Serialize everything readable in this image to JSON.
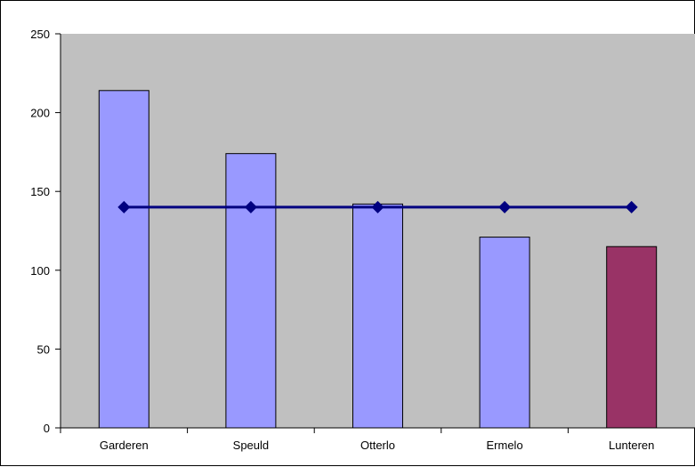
{
  "chart_data": {
    "type": "bar",
    "categories": [
      "Garderen",
      "Speuld",
      "Otterlo",
      "Ermelo",
      "Lunteren"
    ],
    "series": [
      {
        "type": "bar",
        "values": [
          214,
          174,
          142,
          121,
          115
        ],
        "color": "#9999FF",
        "highlight_index": 4,
        "highlight_color": "#993366"
      },
      {
        "type": "line",
        "values": [
          140,
          140,
          140,
          140,
          140
        ],
        "color": "#000080",
        "marker": "diamond"
      }
    ],
    "ylim": [
      0,
      250
    ],
    "yticks": [
      0,
      50,
      100,
      150,
      200,
      250
    ],
    "grid": false,
    "legend": "none",
    "plot_background": "#C0C0C0"
  }
}
